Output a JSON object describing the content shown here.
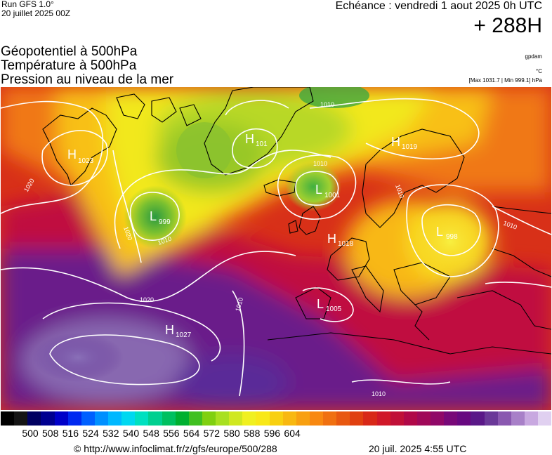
{
  "header": {
    "run_label": "Run GFS 1.0°",
    "run_date": "20 juillet 2025 00Z",
    "valid_time": "Echéance : vendredi 1 aout 2025 0h UTC",
    "lead_time": "+ 288H"
  },
  "parameters": {
    "line1": "Géopotentiel à 500hPa",
    "line2": "Température à 500hPa",
    "line3": "Pression au niveau de la mer"
  },
  "units": {
    "geopotential": "gpdam",
    "temperature": "°C",
    "pressure_range": "[Max 1031.7 | Min 999.1] hPa"
  },
  "map": {
    "pressure_centers": [
      {
        "type": "H",
        "value": "1023"
      },
      {
        "type": "H",
        "value": "1019"
      },
      {
        "type": "H",
        "value": "101"
      },
      {
        "type": "L",
        "value": "1001"
      },
      {
        "type": "L",
        "value": "999"
      },
      {
        "type": "H",
        "value": "1018"
      },
      {
        "type": "L",
        "value": "998"
      },
      {
        "type": "L",
        "value": "1005"
      },
      {
        "type": "H",
        "value": "1027"
      }
    ],
    "isobar_labels": [
      "1010",
      "1010",
      "1020",
      "1020",
      "1010",
      "1010",
      "1020",
      "1010",
      "1010",
      "1010"
    ],
    "colors": {
      "low_geopotential": "#4aa82a",
      "mid_geopotential": "#f2e21a",
      "high_geopotential": "#e02020",
      "very_high_geopotential": "#6a2a8a",
      "isobar": "#ffffff"
    }
  },
  "colorbar": {
    "ticks": [
      "500",
      "508",
      "516",
      "524",
      "532",
      "540",
      "548",
      "556",
      "564",
      "572",
      "580",
      "588",
      "596",
      "604"
    ],
    "colors": [
      "#000000",
      "#141414",
      "#000060",
      "#000090",
      "#0000c8",
      "#0028f0",
      "#0060ff",
      "#0090ff",
      "#00b8ff",
      "#00d8f0",
      "#00e0c0",
      "#00d090",
      "#00c060",
      "#00b030",
      "#40c020",
      "#80d010",
      "#a8e020",
      "#d0e820",
      "#f0f020",
      "#f8e818",
      "#f8d010",
      "#f8b810",
      "#f8a010",
      "#f88810",
      "#f07010",
      "#e85810",
      "#e04010",
      "#d82818",
      "#d01828",
      "#c01038",
      "#b00848",
      "#a00858",
      "#900868",
      "#780878",
      "#680880",
      "#5a1888",
      "#6a3898",
      "#8a58b0",
      "#a880c8",
      "#c8a8e0",
      "#e0d0f0"
    ]
  },
  "footer": {
    "url": "© http://www.infoclimat.fr/z/gfs/europe/500/288",
    "timestamp": "20 juil. 2025  4:55 UTC"
  }
}
